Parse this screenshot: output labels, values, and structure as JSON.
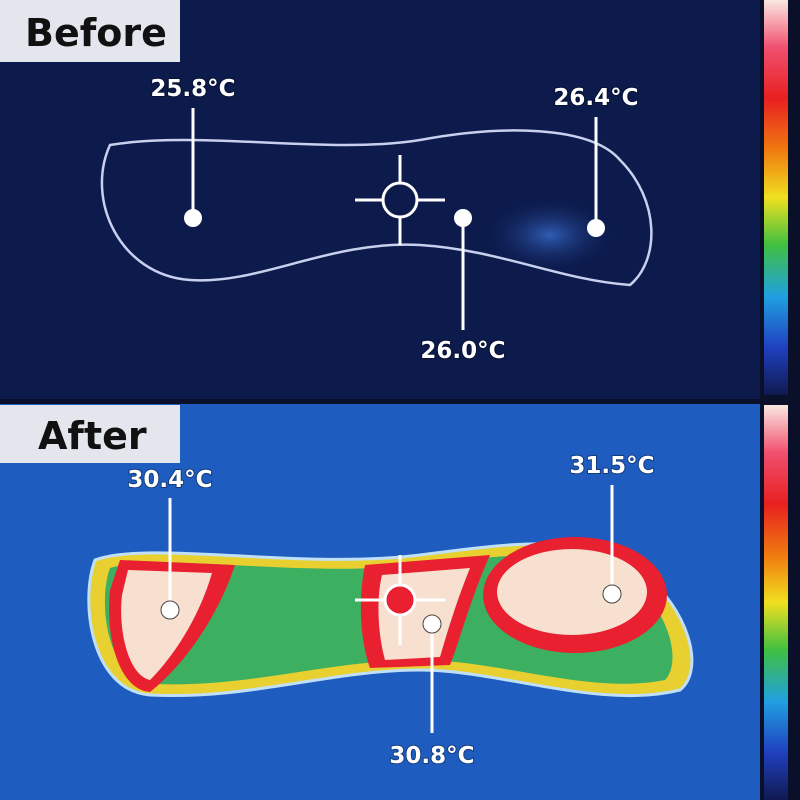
{
  "panels": [
    {
      "label": "Before",
      "readings": [
        "25.8°C",
        "26.4°C",
        "26.0°C"
      ]
    },
    {
      "label": "After",
      "readings": [
        "30.4°C",
        "31.5°C",
        "30.8°C"
      ]
    }
  ]
}
